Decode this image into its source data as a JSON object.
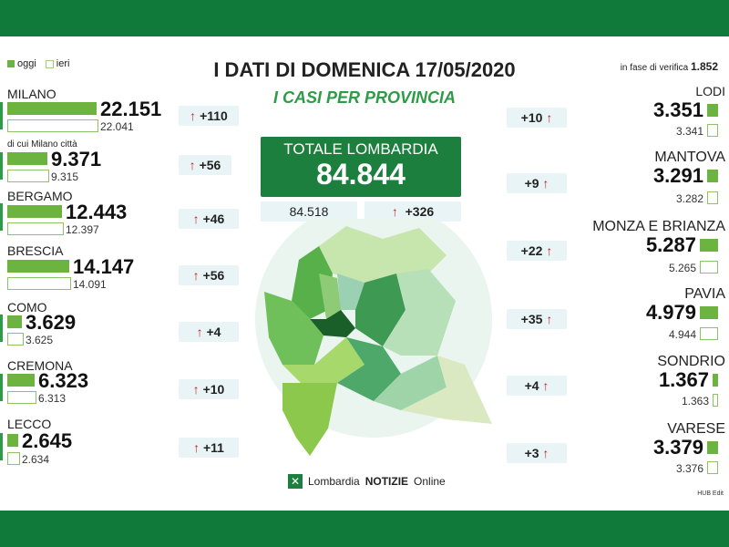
{
  "header": {
    "title": "I DATI DI DOMENICA 17/05/2020",
    "subtitle": "I CASI PER PROVINCIA",
    "legend_today": "oggi",
    "legend_yesterday": "ieri",
    "verifica_label": "in fase di verifica",
    "verifica_value": "1.852"
  },
  "total": {
    "label": "TOTALE LOMBARDIA",
    "value": "84.844",
    "previous": "84.518",
    "increase": "+326"
  },
  "left": [
    {
      "name": "MILANO",
      "today": "22.151",
      "yesterday": "22.041",
      "delta": "+110"
    },
    {
      "name": "di cui Milano città",
      "today": "9.371",
      "yesterday": "9.315",
      "delta": "+56"
    },
    {
      "name": "BERGAMO",
      "today": "12.443",
      "yesterday": "12.397",
      "delta": "+46"
    },
    {
      "name": "BRESCIA",
      "today": "14.147",
      "yesterday": "14.091",
      "delta": "+56"
    },
    {
      "name": "COMO",
      "today": "3.629",
      "yesterday": "3.625",
      "delta": "+4"
    },
    {
      "name": "CREMONA",
      "today": "6.323",
      "yesterday": "6.313",
      "delta": "+10"
    },
    {
      "name": "LECCO",
      "today": "2.645",
      "yesterday": "2.634",
      "delta": "+11"
    }
  ],
  "right": [
    {
      "name": "LODI",
      "today": "3.351",
      "yesterday": "3.341",
      "delta": "+10"
    },
    {
      "name": "MANTOVA",
      "today": "3.291",
      "yesterday": "3.282",
      "delta": "+9"
    },
    {
      "name": "MONZA E BRIANZA",
      "today": "5.287",
      "yesterday": "5.265",
      "delta": "+22"
    },
    {
      "name": "PAVIA",
      "today": "4.979",
      "yesterday": "4.944",
      "delta": "+35"
    },
    {
      "name": "SONDRIO",
      "today": "1.367",
      "yesterday": "1.363",
      "delta": "+4"
    },
    {
      "name": "VARESE",
      "today": "3.379",
      "yesterday": "3.376",
      "delta": "+3"
    }
  ],
  "footer": {
    "logo_text_a": "Lombardia",
    "logo_text_b": "NOTIZIE",
    "logo_text_c": "Online",
    "note": "HUB Edit"
  },
  "colors": {
    "brand_green": "#1d7f3d",
    "bar_green": "#6db33f",
    "arrow_red": "#c62828"
  }
}
